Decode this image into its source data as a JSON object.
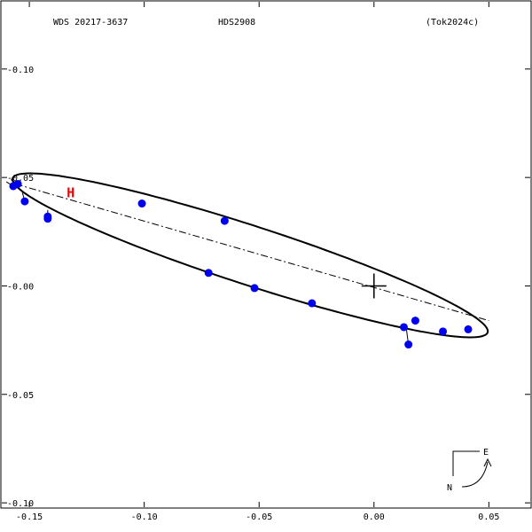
{
  "header": {
    "left": "WDS 20217-3637",
    "center": "HDS2908",
    "right": "(Tok2024c)"
  },
  "compass": {
    "east": "E",
    "north": "N"
  },
  "colors": {
    "points": "#0000ee",
    "hipparcos": "#ee0000",
    "orbit": "#000000"
  },
  "chart_data": {
    "type": "scatter",
    "title": "",
    "xlabel": "",
    "ylabel": "",
    "xlim": [
      -0.162,
      0.068
    ],
    "ylim": [
      -0.131,
      0.102
    ],
    "y_inverted": true,
    "grid": false,
    "x_ticks": [
      {
        "v": -0.15,
        "label": "-0.15"
      },
      {
        "v": -0.1,
        "label": "-0.10"
      },
      {
        "v": -0.05,
        "label": "-0.05"
      },
      {
        "v": 0.0,
        "label": "0.00"
      },
      {
        "v": 0.05,
        "label": "0.05"
      }
    ],
    "y_ticks": [
      {
        "v": 0.1,
        "label": "-0.10"
      },
      {
        "v": 0.05,
        "label": "-0.05"
      },
      {
        "v": 0.0,
        "label": "-0.00"
      },
      {
        "v": -0.05,
        "label": "-0.05"
      },
      {
        "v": -0.1,
        "label": "-0.10"
      }
    ],
    "orbit_ellipse": {
      "center": [
        -0.0539,
        -0.0141
      ],
      "semi_major": 0.1093,
      "semi_minor": 0.0135,
      "angle_deg": 19.0
    },
    "line_of_nodes": [
      [
        -0.156,
        -0.047
      ],
      [
        0.05,
        0.016
      ]
    ],
    "primary": [
      0.0,
      0.0
    ],
    "hipparcos_marker": {
      "label": "H",
      "x": -0.132,
      "y": -0.043
    },
    "series": [
      {
        "points": [
          {
            "obs": [
              -0.157,
              -0.046
            ],
            "fit": [
              -0.16,
              -0.048
            ]
          },
          {
            "obs": [
              -0.155,
              -0.047
            ],
            "fit": [
              -0.158,
              -0.049
            ]
          },
          {
            "obs": [
              -0.152,
              -0.039
            ],
            "fit": [
              -0.153,
              -0.043
            ]
          },
          {
            "obs": [
              -0.142,
              -0.031
            ],
            "fit": [
              -0.142,
              -0.034
            ]
          },
          {
            "obs": [
              -0.142,
              -0.032
            ],
            "fit": [
              -0.142,
              -0.035
            ]
          },
          {
            "obs": [
              -0.101,
              -0.038
            ],
            "fit": [
              -0.1,
              -0.037
            ]
          },
          {
            "obs": [
              -0.072,
              -0.006
            ],
            "fit": [
              -0.072,
              -0.007
            ]
          },
          {
            "obs": [
              -0.065,
              -0.03
            ],
            "fit": [
              -0.065,
              -0.031
            ]
          },
          {
            "obs": [
              -0.052,
              0.001
            ],
            "fit": [
              -0.052,
              0.0
            ]
          },
          {
            "obs": [
              -0.027,
              0.008
            ],
            "fit": [
              -0.027,
              0.007
            ]
          },
          {
            "obs": [
              0.013,
              0.019
            ],
            "fit": [
              0.012,
              0.018
            ]
          },
          {
            "obs": [
              0.015,
              0.027
            ],
            "fit": [
              0.014,
              0.019
            ]
          },
          {
            "obs": [
              0.018,
              0.016
            ],
            "fit": [
              0.018,
              0.017
            ]
          },
          {
            "obs": [
              0.03,
              0.021
            ],
            "fit": [
              0.03,
              0.02
            ]
          },
          {
            "obs": [
              0.041,
              0.02
            ],
            "fit": [
              0.041,
              0.02
            ]
          }
        ]
      }
    ]
  }
}
